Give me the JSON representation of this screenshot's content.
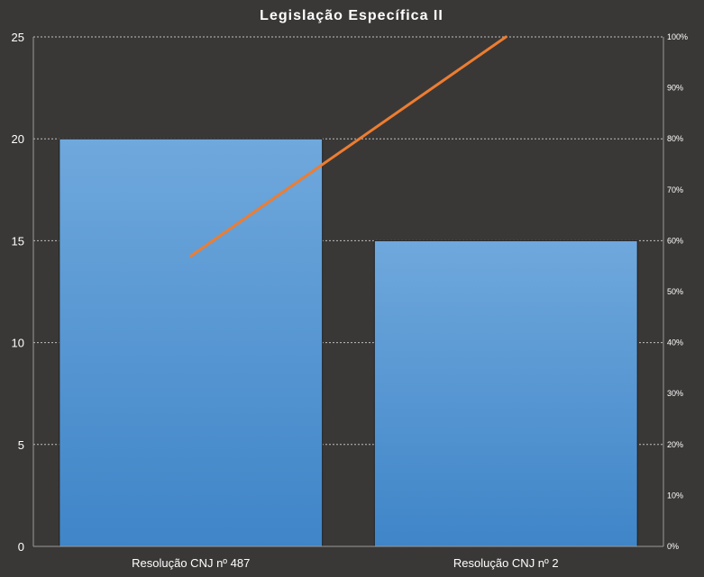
{
  "chart_data": {
    "type": "bar",
    "title": "Legislação Específica II",
    "categories": [
      "Resolução CNJ nº 487",
      "Resolução CNJ nº 2"
    ],
    "series": [
      {
        "type": "bar",
        "values": [
          20,
          15
        ]
      },
      {
        "type": "line",
        "axis": "secondary",
        "values": [
          57,
          100
        ]
      }
    ],
    "ylim": [
      0,
      25
    ],
    "yticks": [
      "0",
      "5",
      "10",
      "15",
      "20",
      "25"
    ],
    "y2lim": [
      0,
      100
    ],
    "y2ticks": [
      "0%",
      "10%",
      "20%",
      "30%",
      "40%",
      "50%",
      "60%",
      "70%",
      "80%",
      "90%",
      "100%"
    ],
    "grid": true,
    "colors": {
      "bar": "#5b9bd5",
      "line": "#ed7d31",
      "background": "#3a3837"
    }
  }
}
